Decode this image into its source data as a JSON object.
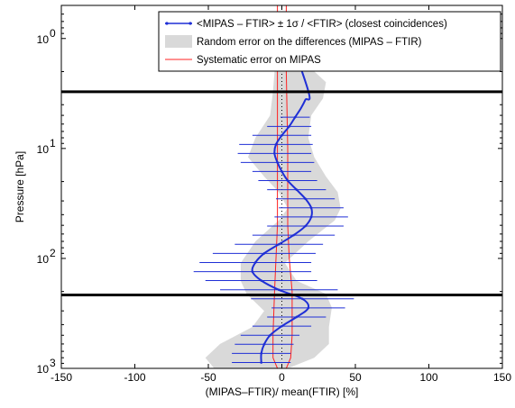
{
  "chart_data": {
    "type": "line",
    "title": "",
    "xlabel": "(MIPAS–FTIR)/ mean(FTIR) [%]",
    "ylabel": "Pressure [hPa]",
    "xlim": [
      -150,
      150
    ],
    "ylim": [
      1000,
      0.5
    ],
    "y_scale": "log",
    "y_reversed": true,
    "x_ticks": [
      "-150",
      "-100",
      "-50",
      "0",
      "50",
      "100",
      "150"
    ],
    "x_tick_values": [
      -150,
      -100,
      -50,
      0,
      50,
      100,
      150
    ],
    "y_ticks": [
      {
        "base": "10",
        "exp": "0",
        "value": 1
      },
      {
        "base": "10",
        "exp": "1",
        "value": 10
      },
      {
        "base": "10",
        "exp": "2",
        "value": 100
      },
      {
        "base": "10",
        "exp": "3",
        "value": 1000
      }
    ],
    "grid": false,
    "legend_position": "top-right",
    "legend": [
      {
        "label": "<MIPAS – FTIR> ± 1σ / <FTIR> (closest coincidences)",
        "symbol": "line-marker",
        "color": "#1f2fd6"
      },
      {
        "label": "Random error on the differences (MIPAS – FTIR)",
        "symbol": "patch",
        "color": "#d9d9d9"
      },
      {
        "label": "Systematic error on MIPAS",
        "symbol": "line",
        "color": "#ff2020"
      }
    ],
    "horizontal_lines": [
      3.05,
      215
    ],
    "horizontal_line_color": "#000000",
    "series": [
      {
        "name": "mean relative difference",
        "color": "#1f2fd6",
        "points": [
          {
            "p": 0.6,
            "x": 0,
            "err": 0
          },
          {
            "p": 3.0,
            "x": 18,
            "err": 0
          },
          {
            "p": 3.6,
            "x": 16,
            "err": 0
          },
          {
            "p": 4.3,
            "x": 13,
            "err": 0
          },
          {
            "p": 5.2,
            "x": 9,
            "err": 10
          },
          {
            "p": 6.3,
            "x": 5,
            "err": 15
          },
          {
            "p": 7.6,
            "x": 0,
            "err": 20
          },
          {
            "p": 9.2,
            "x": -4,
            "err": 25
          },
          {
            "p": 11.1,
            "x": -5,
            "err": 25
          },
          {
            "p": 13.4,
            "x": -3,
            "err": 25
          },
          {
            "p": 16.2,
            "x": 0,
            "err": 20
          },
          {
            "p": 19.6,
            "x": 4,
            "err": 20
          },
          {
            "p": 23.7,
            "x": 10,
            "err": 20
          },
          {
            "p": 28.7,
            "x": 16,
            "err": 20
          },
          {
            "p": 34.7,
            "x": 20,
            "err": 22
          },
          {
            "p": 42.0,
            "x": 20,
            "err": 25
          },
          {
            "p": 50.8,
            "x": 16,
            "err": 26
          },
          {
            "p": 61.5,
            "x": 8,
            "err": 28
          },
          {
            "p": 74.4,
            "x": -2,
            "err": 30
          },
          {
            "p": 90.0,
            "x": -12,
            "err": 35
          },
          {
            "p": 109,
            "x": -18,
            "err": 38
          },
          {
            "p": 132,
            "x": -20,
            "err": 40
          },
          {
            "p": 159,
            "x": -14,
            "err": 38
          },
          {
            "p": 193,
            "x": -2,
            "err": 40
          },
          {
            "p": 233,
            "x": 14,
            "err": 35
          },
          {
            "p": 282,
            "x": 18,
            "err": 25
          },
          {
            "p": 341,
            "x": 10,
            "err": 20
          },
          {
            "p": 413,
            "x": 0,
            "err": 20
          },
          {
            "p": 500,
            "x": -8,
            "err": 20
          },
          {
            "p": 604,
            "x": -12,
            "err": 20
          },
          {
            "p": 731,
            "x": -14,
            "err": 20
          },
          {
            "p": 885,
            "x": -14,
            "err": 20
          }
        ]
      },
      {
        "name": "random error envelope",
        "color": "#d9d9d9",
        "left": [
          {
            "p": 0.6,
            "x": -8
          },
          {
            "p": 2.0,
            "x": -5
          },
          {
            "p": 3.0,
            "x": -6
          },
          {
            "p": 5.0,
            "x": -8
          },
          {
            "p": 8.0,
            "x": -18
          },
          {
            "p": 12.0,
            "x": -23
          },
          {
            "p": 18.0,
            "x": -12
          },
          {
            "p": 25.0,
            "x": -2
          },
          {
            "p": 35.0,
            "x": 4
          },
          {
            "p": 45.0,
            "x": -2
          },
          {
            "p": 70.0,
            "x": -18
          },
          {
            "p": 110.0,
            "x": -28
          },
          {
            "p": 160.0,
            "x": -28
          },
          {
            "p": 210.0,
            "x": -24
          },
          {
            "p": 300.0,
            "x": -12
          },
          {
            "p": 420.0,
            "x": -20
          },
          {
            "p": 600.0,
            "x": -42
          },
          {
            "p": 800.0,
            "x": -52
          },
          {
            "p": 1000.0,
            "x": -46
          }
        ],
        "right": [
          {
            "p": 0.6,
            "x": 6
          },
          {
            "p": 1.5,
            "x": 12
          },
          {
            "p": 2.5,
            "x": 30
          },
          {
            "p": 3.5,
            "x": 28
          },
          {
            "p": 5.0,
            "x": 20
          },
          {
            "p": 8.0,
            "x": 18
          },
          {
            "p": 12.0,
            "x": 22
          },
          {
            "p": 18.0,
            "x": 30
          },
          {
            "p": 25.0,
            "x": 38
          },
          {
            "p": 35.0,
            "x": 40
          },
          {
            "p": 45.0,
            "x": 36
          },
          {
            "p": 70.0,
            "x": 18
          },
          {
            "p": 110.0,
            "x": 2
          },
          {
            "p": 160.0,
            "x": 10
          },
          {
            "p": 210.0,
            "x": 30
          },
          {
            "p": 280.0,
            "x": 34
          },
          {
            "p": 420.0,
            "x": 32
          },
          {
            "p": 600.0,
            "x": 32
          },
          {
            "p": 800.0,
            "x": 22
          },
          {
            "p": 1000.0,
            "x": 4
          }
        ]
      },
      {
        "name": "systematic error envelope",
        "color": "#ff2020",
        "left": [
          {
            "p": 0.5,
            "x": -3
          },
          {
            "p": 2.0,
            "x": -3
          },
          {
            "p": 10.0,
            "x": -3
          },
          {
            "p": 50.0,
            "x": -3
          },
          {
            "p": 100.0,
            "x": -4
          },
          {
            "p": 200.0,
            "x": -5
          },
          {
            "p": 500.0,
            "x": -6
          },
          {
            "p": 800.0,
            "x": -6
          },
          {
            "p": 1000.0,
            "x": -3
          }
        ],
        "right": [
          {
            "p": 0.5,
            "x": 3
          },
          {
            "p": 2.0,
            "x": 3
          },
          {
            "p": 10.0,
            "x": 4
          },
          {
            "p": 50.0,
            "x": 4
          },
          {
            "p": 100.0,
            "x": 5
          },
          {
            "p": 200.0,
            "x": 7
          },
          {
            "p": 500.0,
            "x": 7
          },
          {
            "p": 800.0,
            "x": 6
          },
          {
            "p": 1000.0,
            "x": 3
          }
        ]
      }
    ]
  }
}
